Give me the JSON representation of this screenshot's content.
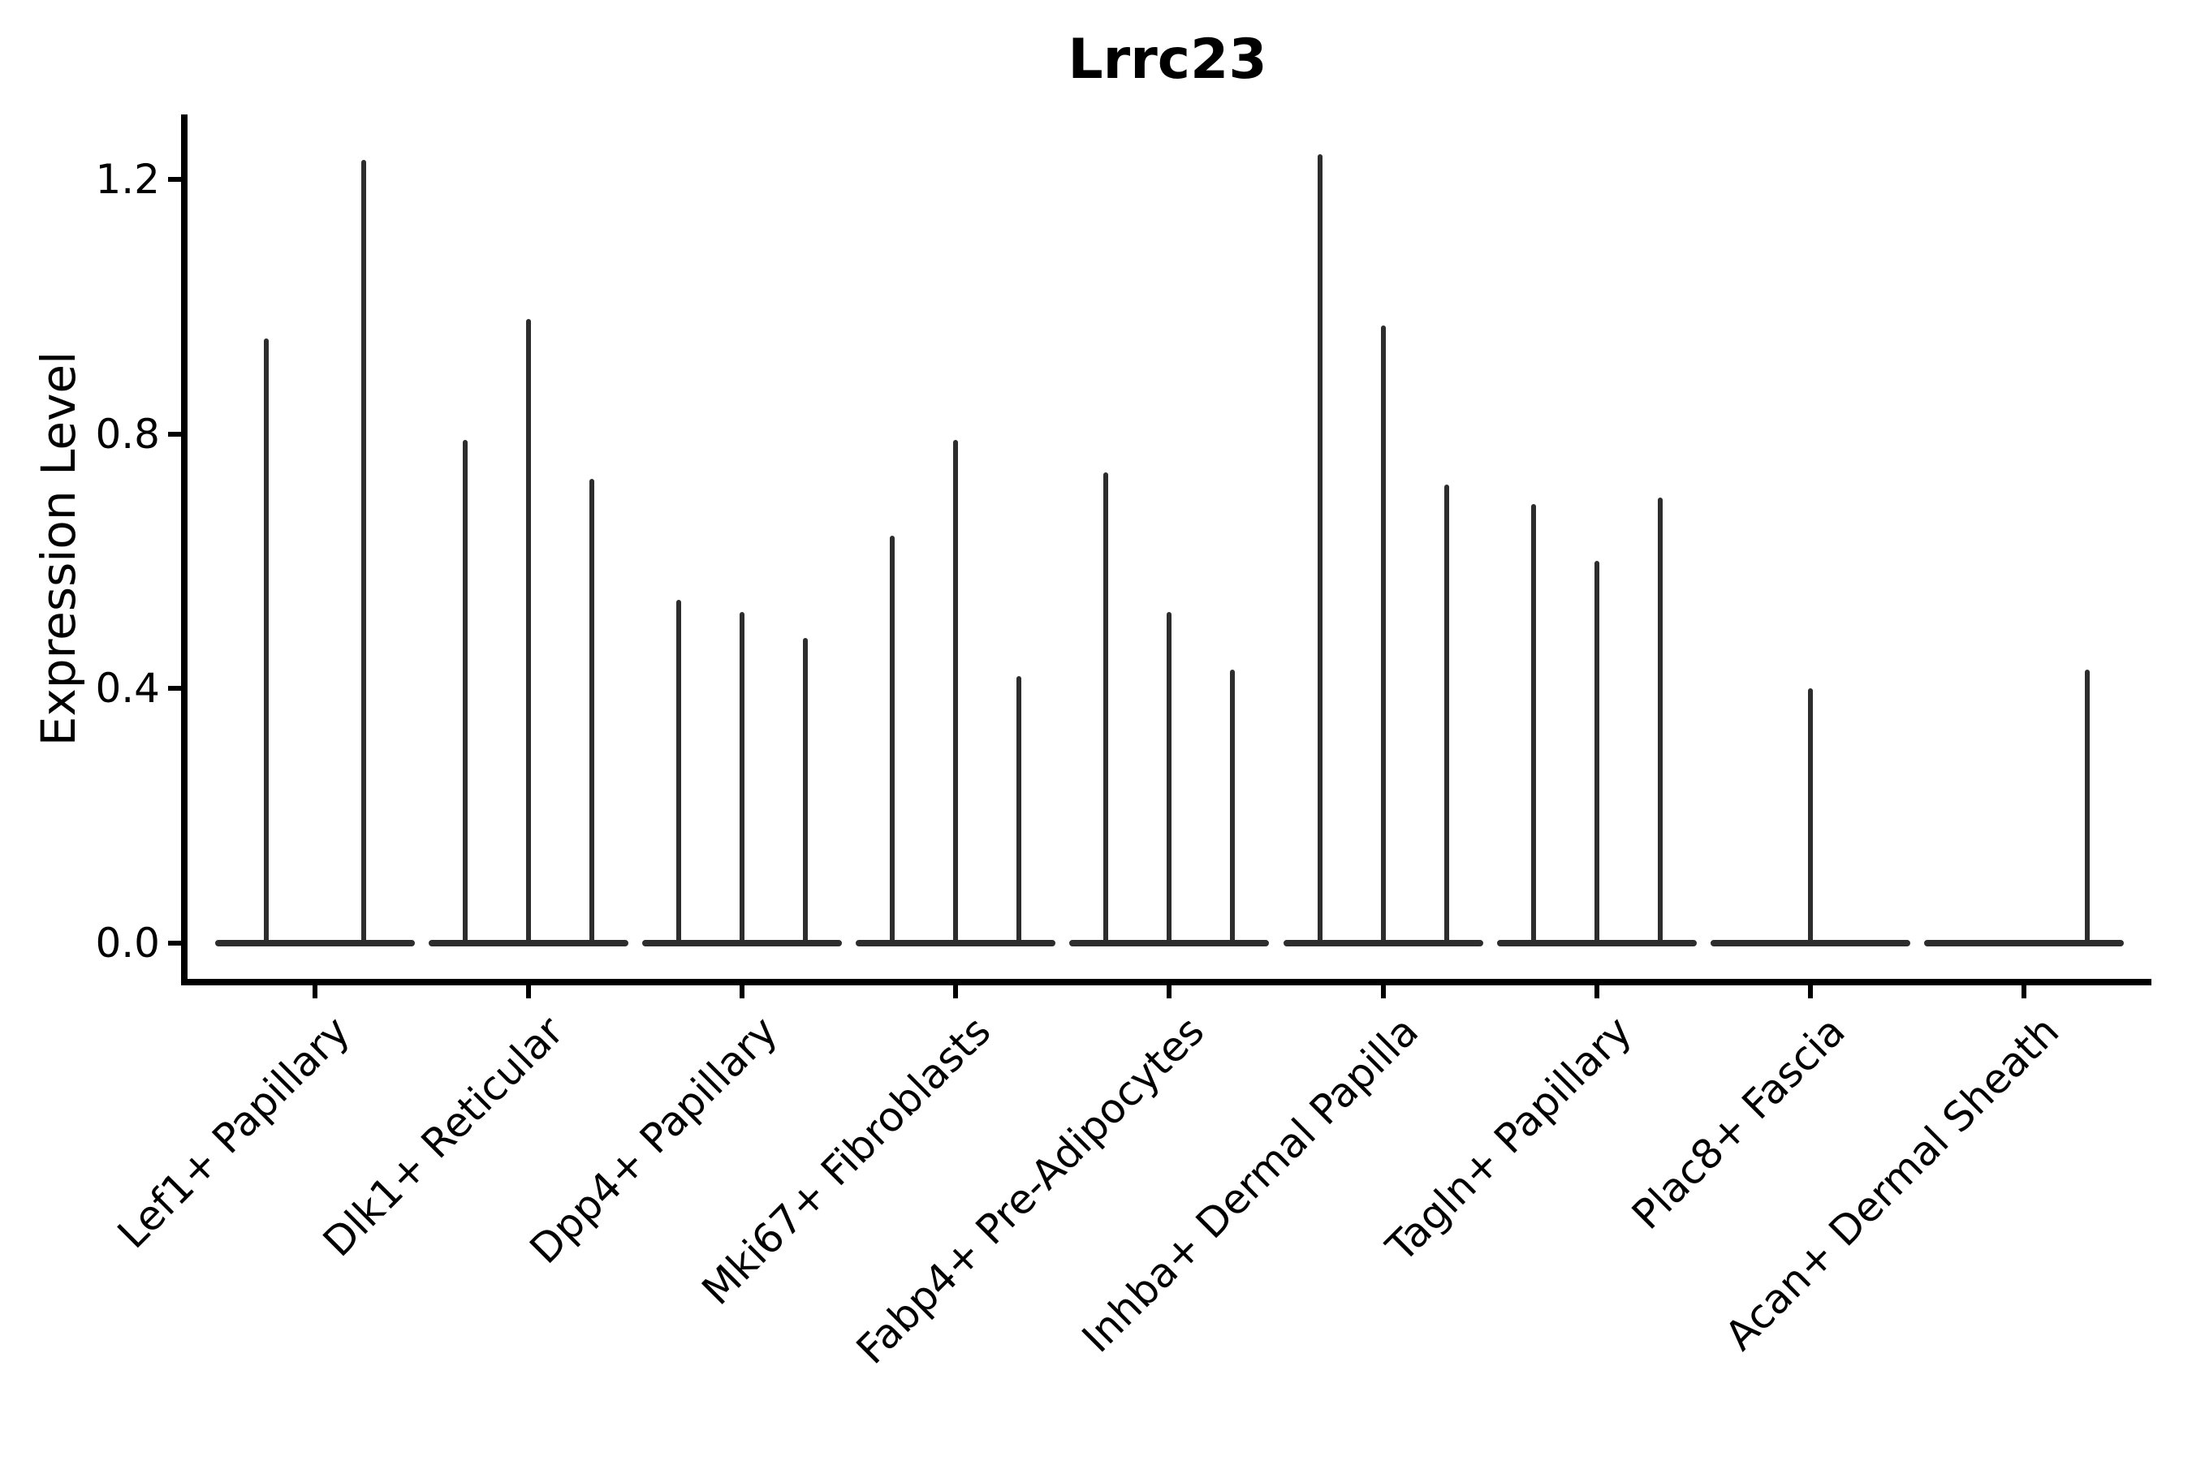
{
  "chart_data": {
    "type": "violin",
    "title": "Lrrc23",
    "xlabel": "",
    "ylabel": "Expression Level",
    "ylim": [
      -0.06,
      1.3
    ],
    "grid": false,
    "legend_position": "none",
    "background_color": "#ffffff",
    "axis_color": "#000000",
    "violin_color": "#2d2d2d",
    "style_note": "Violin plot of gene expression; each cell type has narrow violins collapsed at 0 with thin spikes reaching the maximum expression value",
    "yticks": [
      {
        "label": "0.0",
        "value": 0.0
      },
      {
        "label": "0.4",
        "value": 0.4
      },
      {
        "label": "0.8",
        "value": 0.8
      },
      {
        "label": "1.2",
        "value": 1.2
      }
    ],
    "categories": [
      "Lef1+ Papillary",
      "Dlk1+ Reticular",
      "Dpp4+ Papillary",
      "Mki67+ Fibroblasts",
      "Fabp4+ Pre-Adipocytes",
      "Inhba+ Dermal Papilla",
      "Tagln+ Papillary",
      "Plac8+ Fascia",
      "Acan+ Dermal Sheath"
    ],
    "groups": [
      {
        "label": "Lef1+ Papillary",
        "violin_max_values": [
          0.95,
          1.23
        ]
      },
      {
        "label": "Dlk1+ Reticular",
        "violin_max_values": [
          0.79,
          0.98,
          0.73
        ]
      },
      {
        "label": "Dpp4+ Papillary",
        "violin_max_values": [
          0.54,
          0.52,
          0.48
        ]
      },
      {
        "label": "Mki67+ Fibroblasts",
        "violin_max_values": [
          0.64,
          0.79,
          0.42
        ]
      },
      {
        "label": "Fabp4+ Pre-Adipocytes",
        "violin_max_values": [
          0.74,
          0.52,
          0.43
        ]
      },
      {
        "label": "Inhba+ Dermal Papilla",
        "violin_max_values": [
          1.24,
          0.97,
          0.72
        ]
      },
      {
        "label": "Tagln+ Papillary",
        "violin_max_values": [
          0.69,
          0.6,
          0.7
        ]
      },
      {
        "label": "Plac8+ Fascia",
        "violin_max_values": [
          0.0,
          0.4,
          0.0
        ]
      },
      {
        "label": "Acan+ Dermal Sheath",
        "violin_max_values": [
          0.0,
          0.0,
          0.43
        ]
      }
    ]
  }
}
